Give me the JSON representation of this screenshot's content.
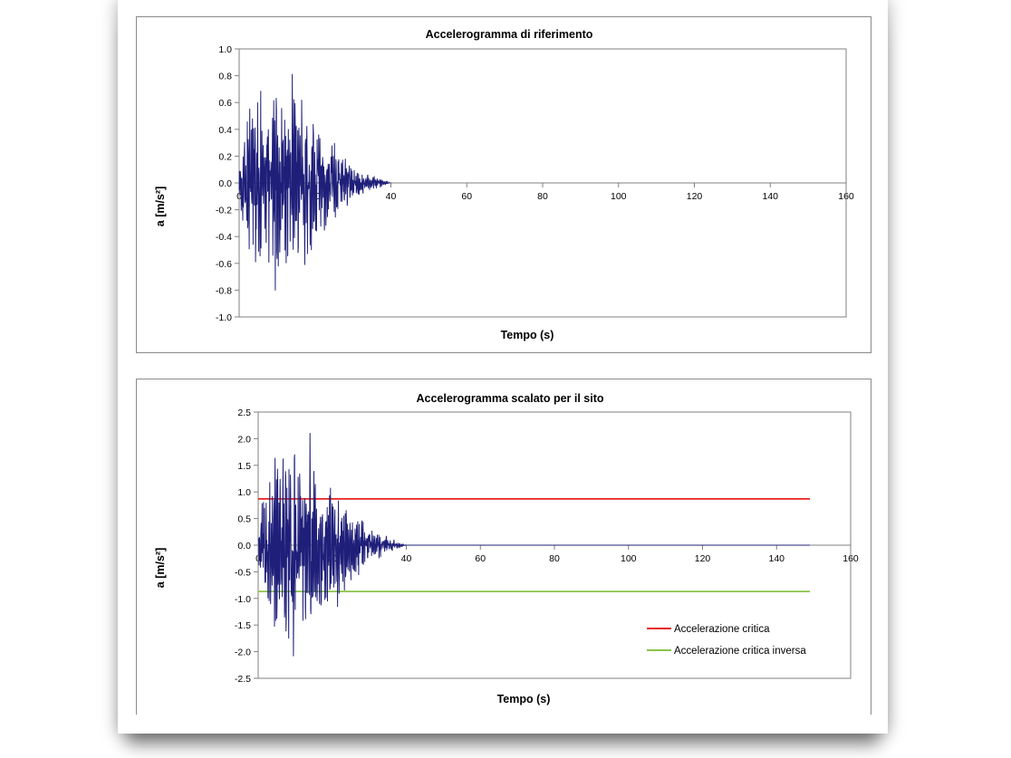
{
  "chart_data": [
    {
      "type": "line",
      "title": "Accelerogramma di riferimento",
      "xlabel": "Tempo (s)",
      "ylabel": "a [m/s²]",
      "xlim": [
        0,
        160
      ],
      "ylim": [
        -1.0,
        1.0
      ],
      "xticks": [
        0,
        20,
        40,
        60,
        80,
        100,
        120,
        140,
        160
      ],
      "yticks": [
        1.0,
        0.8,
        0.6,
        0.4,
        0.2,
        0.0,
        -0.2,
        -0.4,
        -0.6,
        -0.8,
        -1.0
      ],
      "xtick_labels": [
        "0",
        "20",
        "40",
        "60",
        "80",
        "100",
        "120",
        "140",
        "160"
      ],
      "ytick_labels": [
        "1.0",
        "0.8",
        "0.6",
        "0.4",
        "0.2",
        "0.0",
        "-0.2",
        "-0.4",
        "-0.6",
        "-0.8",
        "-1.0"
      ],
      "grid": false,
      "series": [
        {
          "name": "Accelerogramma",
          "color": "#1f1f7a",
          "duration": 40,
          "peak_pos": 0.81,
          "peak_neg": -0.8,
          "peak_time": 14,
          "note": "dense seismic accelerogram, energy concentrated 3–20 s, decaying to 0 by ~40 s"
        }
      ],
      "hlines": []
    },
    {
      "type": "line",
      "title": "Accelerogramma scalato per il sito",
      "xlabel": "Tempo (s)",
      "ylabel": "a [m/s²]",
      "xlim": [
        0,
        160
      ],
      "ylim": [
        -2.5,
        2.5
      ],
      "xticks": [
        0,
        20,
        40,
        60,
        80,
        100,
        120,
        140,
        160
      ],
      "yticks": [
        2.5,
        2.0,
        1.5,
        1.0,
        0.5,
        0.0,
        -0.5,
        -1.0,
        -1.5,
        -2.0,
        -2.5
      ],
      "xtick_labels": [
        "0",
        "20",
        "40",
        "60",
        "80",
        "100",
        "120",
        "140",
        "160"
      ],
      "ytick_labels": [
        "2.5",
        "2.0",
        "1.5",
        "1.0",
        "0.5",
        "0.0",
        "-0.5",
        "-1.0",
        "-1.5",
        "-2.0",
        "-2.5"
      ],
      "grid": false,
      "series": [
        {
          "name": "Accelerogramma scalato",
          "color": "#1f1f7a",
          "duration": 40,
          "baseline_end": 149,
          "peak_pos": 2.1,
          "peak_neg": -2.08,
          "peak_time": 14
        }
      ],
      "hlines": [
        {
          "name": "Accelerazione critica",
          "y": 0.87,
          "x_end": 149,
          "color": "#e8231d"
        },
        {
          "name": "Accelerazione critica inversa",
          "y": -0.87,
          "x_end": 149,
          "color": "#8bc34a"
        }
      ],
      "legend": {
        "position": "bottom-right",
        "entries": [
          "Accelerazione critica",
          "Accelerazione critica inversa"
        ]
      }
    }
  ]
}
